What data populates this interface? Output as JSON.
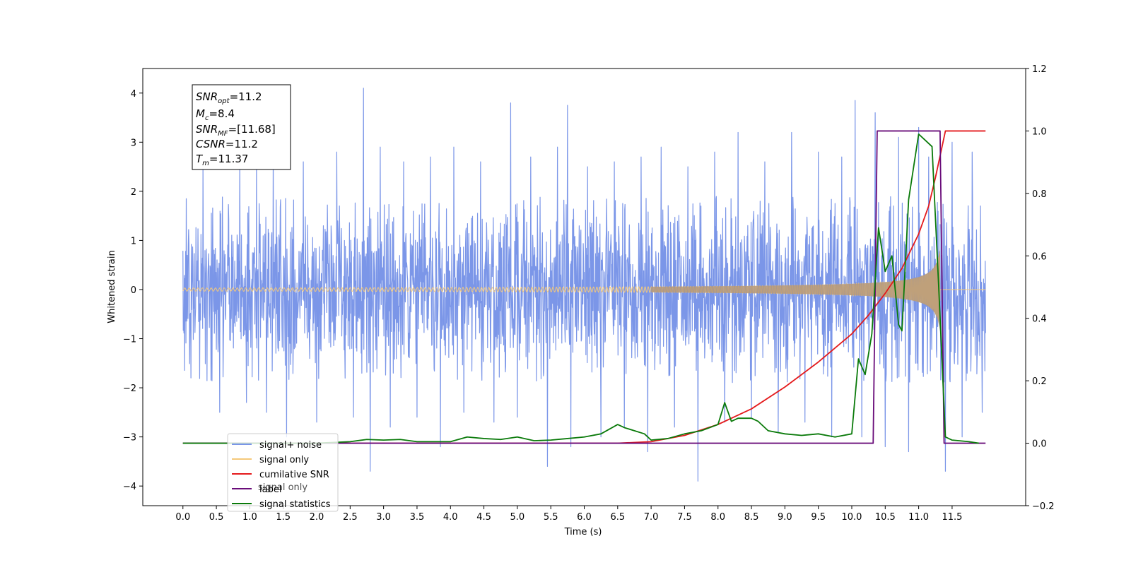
{
  "chart_data": {
    "type": "line",
    "xlabel": "Time (s)",
    "ylabel_left": "Whitened strain",
    "ylabel_right": "",
    "xlim": [
      -0.6,
      12.6
    ],
    "ylim_left": [
      -4.4,
      4.5
    ],
    "ylim_right": [
      -0.2,
      1.2
    ],
    "xticks": [
      "0.0",
      "0.5",
      "1.0",
      "1.5",
      "2.0",
      "2.5",
      "3.0",
      "3.5",
      "4.0",
      "4.5",
      "5.0",
      "5.5",
      "6.0",
      "6.5",
      "7.0",
      "7.5",
      "8.0",
      "8.5",
      "9.0",
      "9.5",
      "10.0",
      "10.5",
      "11.0",
      "11.5"
    ],
    "yticks_left": [
      "4",
      "3",
      "2",
      "1",
      "0",
      "−1",
      "−2",
      "−3",
      "−4"
    ],
    "yticks_right": [
      "1.2",
      "1.0",
      "0.8",
      "0.6",
      "0.4",
      "0.2",
      "0.0",
      "−0.2"
    ],
    "info_box": {
      "snr_opt": {
        "base": "SNR",
        "sub": "opt",
        "value": "=11.2"
      },
      "mc": {
        "base": "M",
        "sub": "c",
        "value": "=8.4"
      },
      "snr_mf": {
        "base": "SNR",
        "sub": "MF",
        "value": "=[11.68]"
      },
      "csnr": {
        "base": "CSNR",
        "sub": "",
        "value": "=11.2"
      },
      "tm": {
        "base": "T",
        "sub": "m",
        "value": "=11.37"
      }
    },
    "legend": {
      "placement": "lower-left",
      "entries": [
        {
          "label": "signal+ noise",
          "color": "#7b96e8"
        },
        {
          "label": "signal only",
          "color": "#f5c97a"
        },
        {
          "label": "cumilative SNR",
          "color": "#e41a1c"
        },
        {
          "label": "label",
          "color": "#6a0d7a"
        },
        {
          "label": "signal statistics",
          "color": "#0a7a0a"
        }
      ],
      "ghost_text": "signal only"
    },
    "series": [
      {
        "name": "signal+ noise",
        "axis": "left",
        "style": "noise band",
        "x_range": [
          0.0,
          12.0
        ],
        "band_envelope": [
          -1.9,
          1.9
        ],
        "spikes": [
          [
            0.05,
            1.85
          ],
          [
            0.12,
            -1.8
          ],
          [
            0.3,
            2.5
          ],
          [
            0.55,
            -2.5
          ],
          [
            0.85,
            2.6
          ],
          [
            0.95,
            -2.3
          ],
          [
            1.1,
            2.7
          ],
          [
            1.25,
            -2.5
          ],
          [
            1.35,
            2.9
          ],
          [
            1.55,
            -3.0
          ],
          [
            1.8,
            2.6
          ],
          [
            2.0,
            -2.7
          ],
          [
            2.3,
            2.8
          ],
          [
            2.55,
            -2.6
          ],
          [
            2.7,
            4.1
          ],
          [
            2.8,
            -3.7
          ],
          [
            2.95,
            2.9
          ],
          [
            3.1,
            -2.8
          ],
          [
            3.3,
            2.6
          ],
          [
            3.5,
            -2.6
          ],
          [
            3.7,
            2.7
          ],
          [
            3.85,
            -3.2
          ],
          [
            4.05,
            2.9
          ],
          [
            4.2,
            -2.5
          ],
          [
            4.45,
            2.6
          ],
          [
            4.65,
            -2.7
          ],
          [
            4.9,
            3.8
          ],
          [
            5.0,
            -2.6
          ],
          [
            5.2,
            2.7
          ],
          [
            5.45,
            -3.6
          ],
          [
            5.6,
            2.9
          ],
          [
            5.75,
            3.75
          ],
          [
            5.8,
            -3.2
          ],
          [
            6.05,
            2.5
          ],
          [
            6.25,
            -3.0
          ],
          [
            6.45,
            2.6
          ],
          [
            6.6,
            -2.8
          ],
          [
            6.85,
            2.7
          ],
          [
            6.95,
            -3.3
          ],
          [
            7.15,
            2.9
          ],
          [
            7.35,
            -2.8
          ],
          [
            7.55,
            2.5
          ],
          [
            7.7,
            -3.9
          ],
          [
            7.95,
            2.8
          ],
          [
            8.1,
            -2.7
          ],
          [
            8.3,
            3.2
          ],
          [
            8.5,
            -2.6
          ],
          [
            8.7,
            2.6
          ],
          [
            8.9,
            -2.9
          ],
          [
            9.1,
            3.2
          ],
          [
            9.3,
            -2.7
          ],
          [
            9.5,
            2.8
          ],
          [
            9.7,
            -3.0
          ],
          [
            9.85,
            2.7
          ],
          [
            10.05,
            3.85
          ],
          [
            10.15,
            -3.0
          ],
          [
            10.35,
            3.6
          ],
          [
            10.5,
            -3.2
          ],
          [
            10.7,
            3.1
          ],
          [
            10.85,
            -3.3
          ],
          [
            11.0,
            3.3
          ],
          [
            11.15,
            2.7
          ],
          [
            11.4,
            -3.7
          ],
          [
            11.5,
            3.0
          ],
          [
            11.65,
            -3.0
          ],
          [
            11.8,
            2.8
          ],
          [
            11.95,
            -2.5
          ]
        ]
      },
      {
        "name": "signal only",
        "axis": "left",
        "style": "chirp",
        "x_range": [
          0.0,
          12.0
        ],
        "merger_time": 11.37,
        "end_time": 11.32,
        "peak_amplitude": 0.85
      },
      {
        "name": "cumilative SNR",
        "axis": "right",
        "x": [
          0.0,
          6.5,
          7.0,
          7.5,
          8.0,
          8.5,
          9.0,
          9.5,
          10.0,
          10.25,
          10.5,
          10.75,
          11.0,
          11.15,
          11.25,
          11.35,
          11.4,
          12.0
        ],
        "values": [
          0.0,
          0.0,
          0.005,
          0.025,
          0.06,
          0.11,
          0.18,
          0.26,
          0.35,
          0.41,
          0.48,
          0.56,
          0.67,
          0.76,
          0.85,
          0.95,
          1.0,
          1.0
        ]
      },
      {
        "name": "label",
        "axis": "right",
        "x": [
          0.0,
          10.32,
          10.38,
          11.32,
          11.38,
          12.0
        ],
        "values": [
          0.0,
          0.0,
          1.0,
          1.0,
          0.0,
          0.0
        ]
      },
      {
        "name": "signal statistics",
        "axis": "right",
        "x": [
          0.0,
          2.0,
          2.5,
          2.75,
          3.0,
          3.25,
          3.5,
          4.0,
          4.25,
          4.5,
          4.75,
          5.0,
          5.25,
          5.5,
          5.75,
          6.0,
          6.25,
          6.5,
          6.6,
          6.75,
          6.9,
          7.0,
          7.25,
          7.5,
          7.75,
          8.0,
          8.1,
          8.2,
          8.3,
          8.5,
          8.6,
          8.75,
          9.0,
          9.25,
          9.5,
          9.75,
          10.0,
          10.1,
          10.2,
          10.3,
          10.4,
          10.5,
          10.6,
          10.7,
          10.75,
          10.85,
          10.95,
          11.0,
          11.1,
          11.2,
          11.3,
          11.4,
          11.5,
          11.75,
          11.9
        ],
        "values": [
          0.0,
          0.0,
          0.005,
          0.012,
          0.01,
          0.012,
          0.005,
          0.005,
          0.02,
          0.015,
          0.012,
          0.02,
          0.008,
          0.01,
          0.015,
          0.02,
          0.03,
          0.06,
          0.05,
          0.04,
          0.03,
          0.01,
          0.015,
          0.03,
          0.04,
          0.06,
          0.13,
          0.07,
          0.08,
          0.08,
          0.07,
          0.04,
          0.03,
          0.025,
          0.03,
          0.02,
          0.03,
          0.27,
          0.22,
          0.35,
          0.69,
          0.55,
          0.6,
          0.38,
          0.36,
          0.78,
          0.92,
          0.99,
          0.97,
          0.95,
          0.5,
          0.02,
          0.01,
          0.005,
          0.0
        ]
      }
    ]
  }
}
